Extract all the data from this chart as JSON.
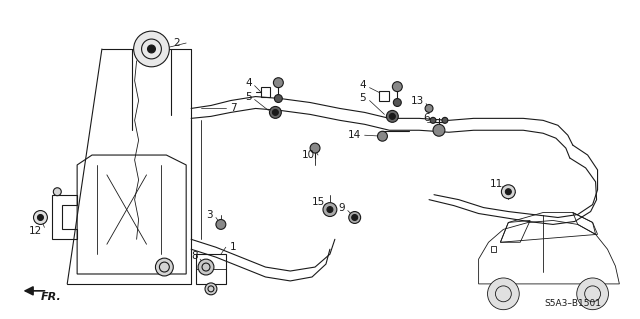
{
  "bg_color": "#ffffff",
  "line_color": "#1a1a1a",
  "diagram_code": "S5A3–B1501",
  "figsize": [
    6.4,
    3.19
  ],
  "dpi": 100,
  "label_fontsize": 7.5,
  "small_fontsize": 6.5
}
